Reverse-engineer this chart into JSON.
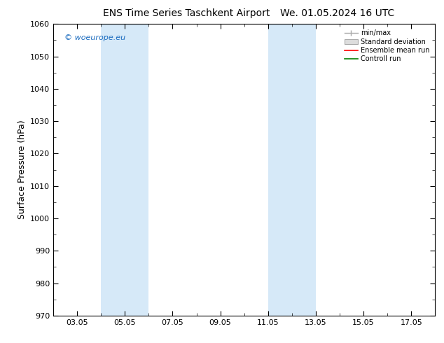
{
  "title_left": "ENS Time Series Taschkent Airport",
  "title_right": "We. 01.05.2024 16 UTC",
  "ylabel": "Surface Pressure (hPa)",
  "ylim": [
    970,
    1060
  ],
  "yticks": [
    970,
    980,
    990,
    1000,
    1010,
    1020,
    1030,
    1040,
    1050,
    1060
  ],
  "xlim": [
    2.0,
    18.0
  ],
  "xtick_labels": [
    "03.05",
    "05.05",
    "07.05",
    "09.05",
    "11.05",
    "13.05",
    "15.05",
    "17.05"
  ],
  "xtick_positions": [
    3,
    5,
    7,
    9,
    11,
    13,
    15,
    17
  ],
  "shaded_bands": [
    {
      "xmin": 4.0,
      "xmax": 6.0,
      "color": "#d6e9f8",
      "alpha": 1.0
    },
    {
      "xmin": 11.0,
      "xmax": 13.0,
      "color": "#d6e9f8",
      "alpha": 1.0
    }
  ],
  "watermark": "© woeurope.eu",
  "watermark_color": "#1a6bbf",
  "legend_entries": [
    "min/max",
    "Standard deviation",
    "Ensemble mean run",
    "Controll run"
  ],
  "legend_colors_line": [
    "#aaaaaa",
    "#cccccc",
    "#ff0000",
    "#008000"
  ],
  "background_color": "#ffffff",
  "plot_bg_color": "#ffffff",
  "title_fontsize": 10,
  "axis_label_fontsize": 9,
  "tick_fontsize": 8,
  "figsize": [
    6.34,
    4.9
  ],
  "dpi": 100
}
